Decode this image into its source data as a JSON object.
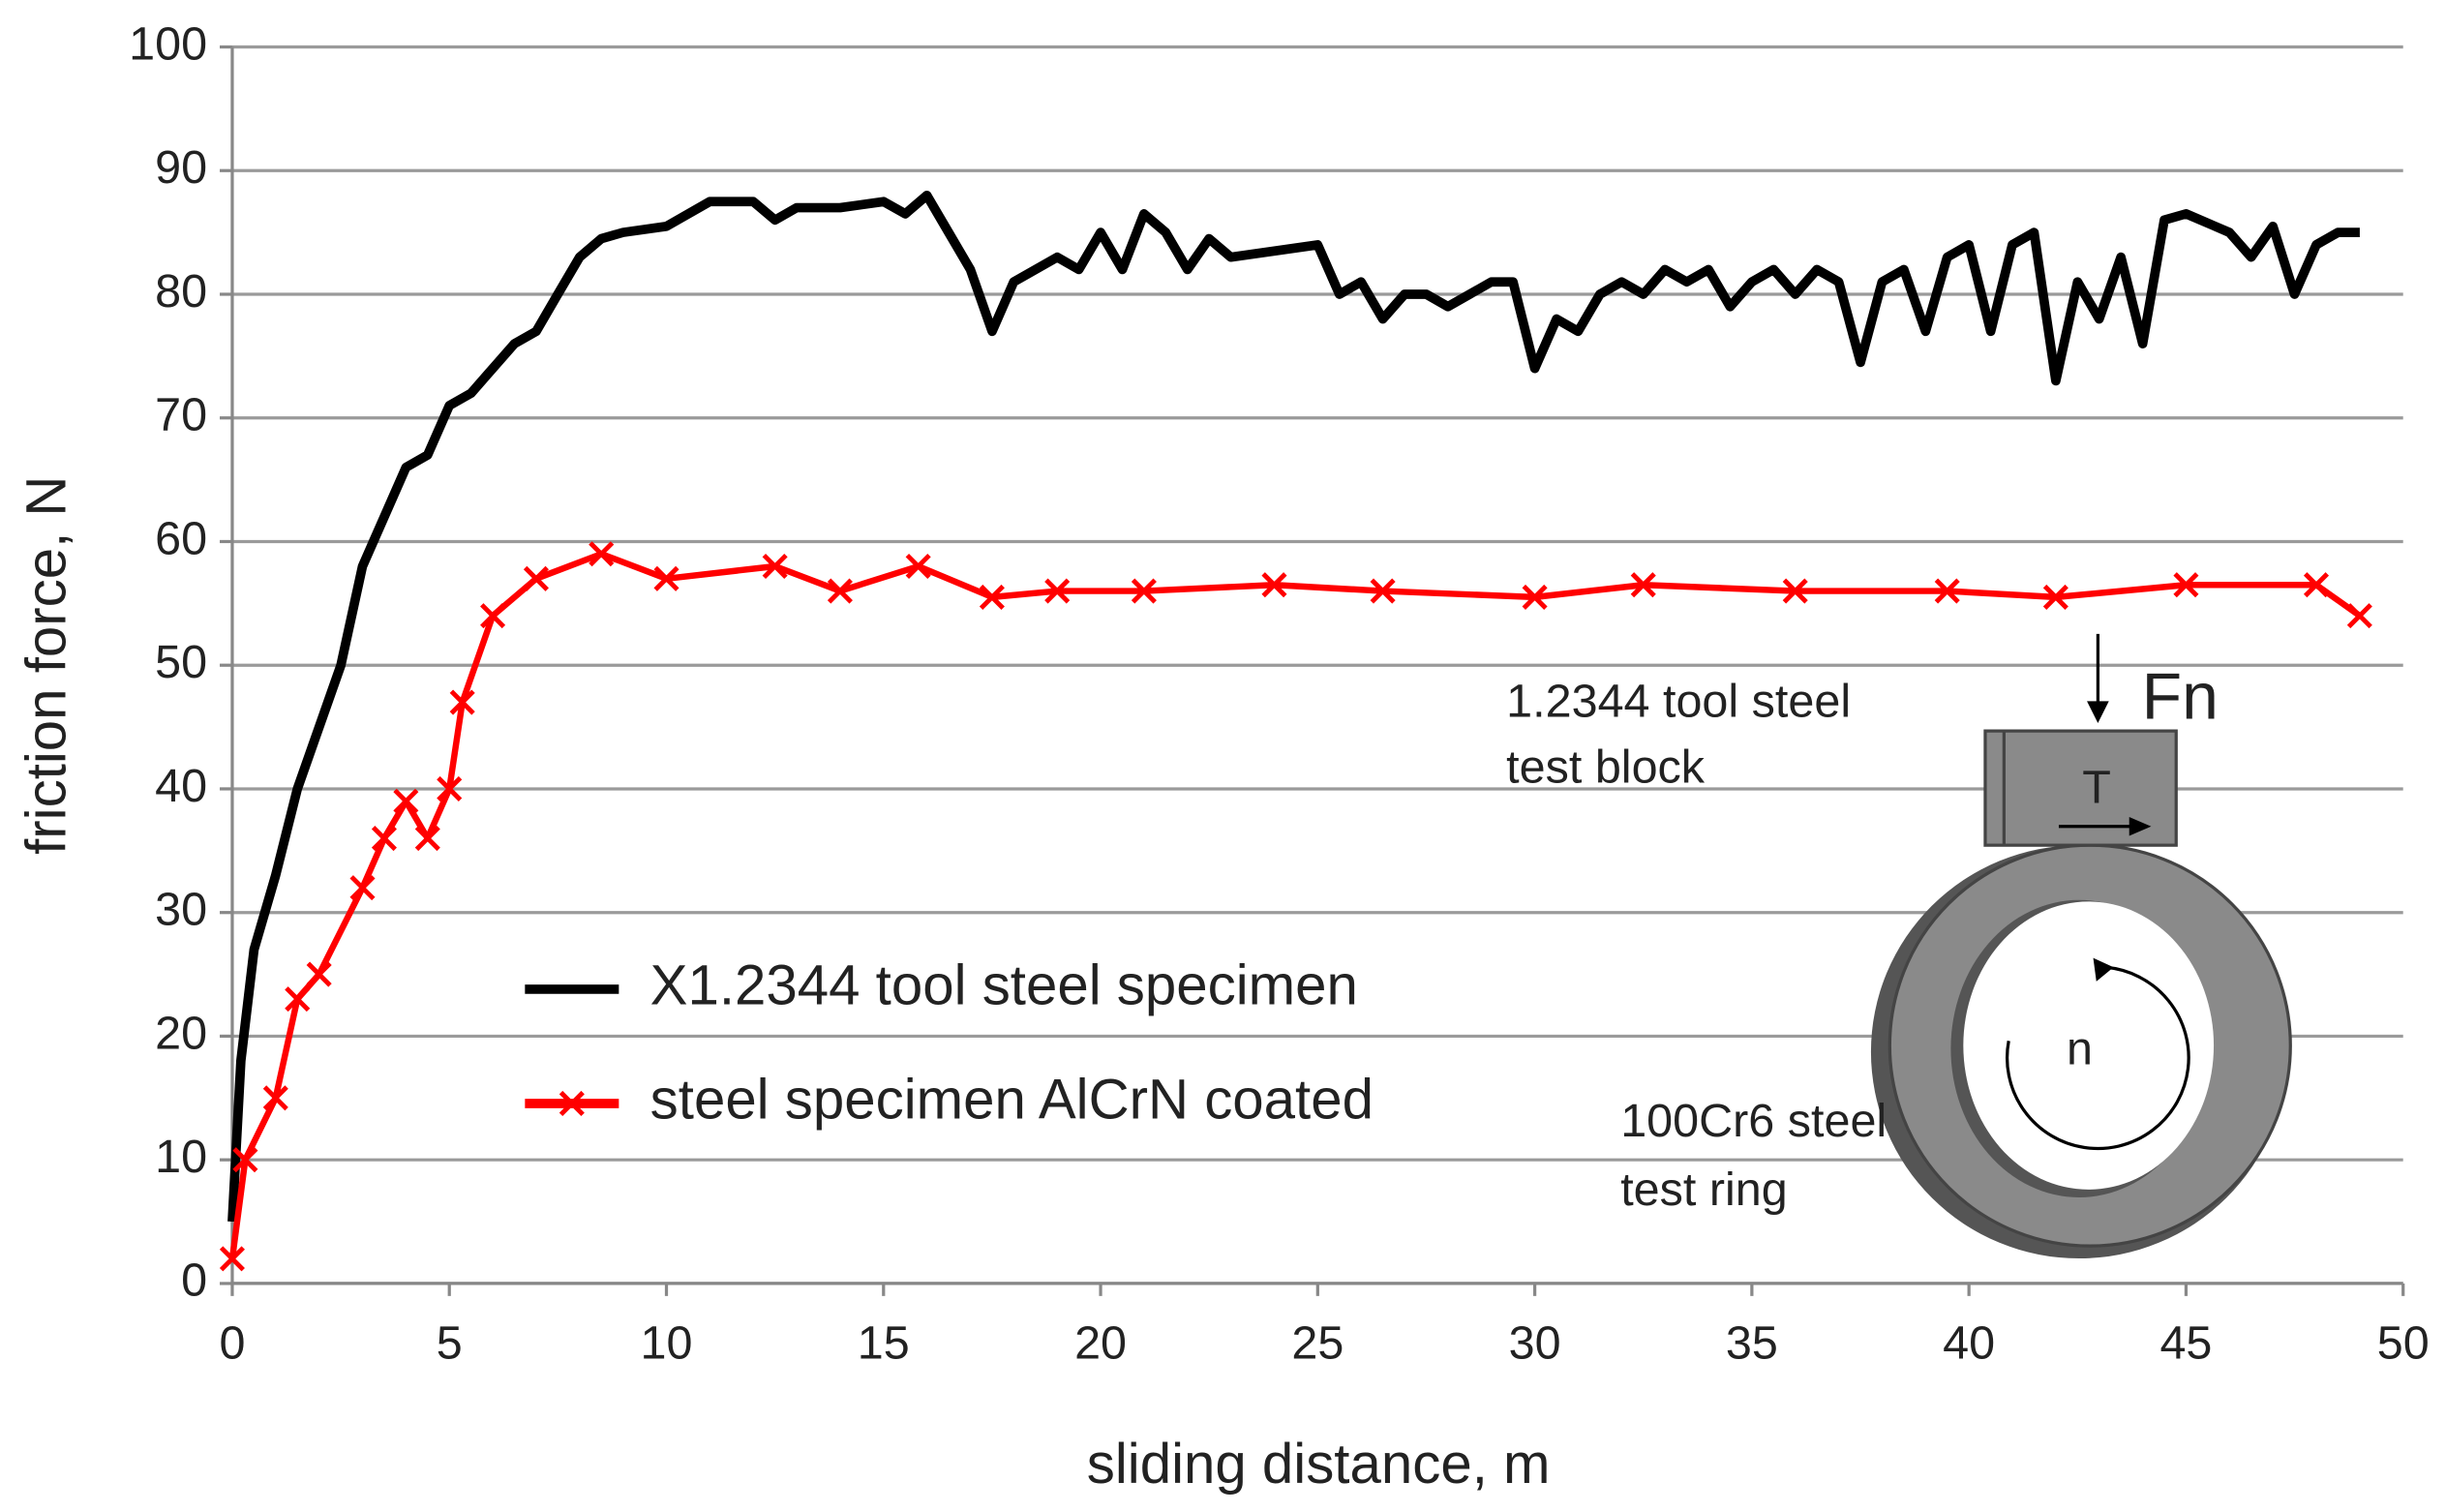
{
  "chart_data": {
    "type": "line",
    "xlabel": "sliding distance, m",
    "ylabel": "friction  force, N",
    "xlim": [
      0,
      50
    ],
    "xticks": [
      0,
      5,
      10,
      15,
      20,
      25,
      30,
      35,
      40,
      45,
      50
    ],
    "ylim": [
      0,
      100
    ],
    "yticks": [
      0,
      10,
      20,
      30,
      40,
      50,
      60,
      70,
      80,
      90,
      100
    ],
    "grid": true,
    "series": [
      {
        "name": "X1.2344 tool steel specimen",
        "color": "#000000",
        "x": [
          0,
          0.2,
          0.5,
          1,
          1.5,
          2,
          2.5,
          3,
          3.5,
          4,
          4.5,
          5,
          5.5,
          6,
          6.5,
          7,
          7.5,
          8,
          8.5,
          9,
          10,
          11,
          12,
          12.5,
          13,
          14,
          15,
          15.5,
          16,
          16.5,
          17,
          17.5,
          18,
          19,
          19.5,
          20,
          20.5,
          21,
          21.5,
          22,
          22.5,
          23,
          24,
          25,
          25.5,
          26,
          26.5,
          27,
          27.5,
          28,
          28.5,
          29,
          29.5,
          30,
          30.5,
          31,
          31.5,
          32,
          32.5,
          33,
          33.5,
          34,
          34.5,
          35,
          35.5,
          36,
          36.5,
          37,
          37.5,
          38,
          38.5,
          39,
          39.5,
          40,
          40.5,
          41,
          41.5,
          42,
          42.5,
          43,
          43.5,
          44,
          44.5,
          45,
          46,
          46.5,
          47,
          47.5,
          48,
          48.5,
          49
        ],
        "values": [
          5,
          18,
          27,
          33,
          40,
          45,
          50,
          58,
          62,
          66,
          67,
          71,
          72,
          74,
          76,
          77,
          80,
          83,
          84.5,
          85,
          85.5,
          87.5,
          87.5,
          86,
          87,
          87,
          87.5,
          86.5,
          88,
          85,
          82,
          77,
          81,
          83,
          82,
          85,
          82,
          86.5,
          85,
          82,
          84.5,
          83,
          83.5,
          84,
          80,
          81,
          78,
          80,
          80,
          79,
          80,
          81,
          81,
          74,
          78,
          77,
          80,
          81,
          80,
          82,
          81,
          82,
          79,
          81,
          82,
          80,
          82,
          81,
          74.5,
          81,
          82,
          77,
          83,
          84,
          77,
          84,
          85,
          73,
          81,
          78,
          83,
          76,
          86,
          86.5,
          85,
          83,
          85.5,
          80,
          84,
          85,
          85
        ]
      },
      {
        "name": "steel specimen AlCrN coated",
        "color": "#ff0000",
        "marker": "x",
        "x": [
          0,
          0.3,
          1,
          1.5,
          2,
          3,
          3.5,
          4,
          4.5,
          5,
          5.3,
          6,
          7,
          8.5,
          10,
          12.5,
          14,
          15.8,
          17.5,
          19,
          21,
          24,
          26.5,
          30,
          32.5,
          36,
          39.5,
          42,
          45,
          48,
          49
        ],
        "values": [
          2,
          10,
          15,
          23,
          25,
          32,
          36,
          39,
          36,
          40,
          47,
          54,
          57,
          59,
          57,
          58,
          56,
          58,
          55.5,
          56,
          56,
          56.5,
          56,
          55.5,
          56.5,
          56,
          56,
          55.5,
          56.5,
          56.5,
          54
        ]
      }
    ],
    "legend": "center-left",
    "annotations": {
      "block_1": "1.2344 tool steel",
      "block_2": "test block",
      "force": "Fn",
      "torque": "T",
      "speed": "n",
      "ring_1": "100Cr6 steel",
      "ring_2": "test ring"
    }
  }
}
